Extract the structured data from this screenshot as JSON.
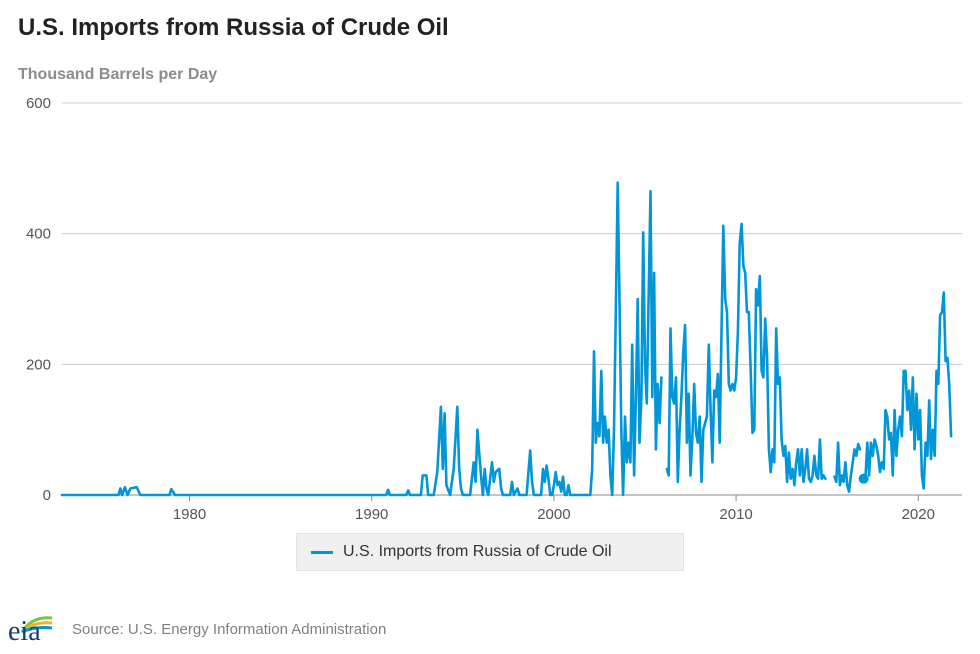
{
  "title": "U.S. Imports from Russia of Crude Oil",
  "subtitle": "Thousand Barrels per Day",
  "source": "Source: U.S. Energy Information Administration",
  "logo": {
    "text": "eia",
    "icon": "eia-logo-icon"
  },
  "colors": {
    "series": "#0096d7",
    "grid": "#cccccc",
    "axis": "#555555",
    "title": "#222222"
  },
  "chart_data": {
    "type": "line",
    "title": "U.S. Imports from Russia of Crude Oil",
    "ylabel": "Thousand Barrels per Day",
    "xlabel": "",
    "xlim": [
      1973,
      2022.4
    ],
    "ylim": [
      0,
      600
    ],
    "xticks": [
      1980,
      1990,
      2000,
      2010,
      2020
    ],
    "yticks": [
      0,
      200,
      400,
      600
    ],
    "legend": "bottom-center",
    "series": [
      {
        "name": "U.S. Imports from Russia of Crude Oil",
        "color": "#0096d7",
        "points": [
          [
            1973.0,
            0
          ],
          [
            1976.1,
            0
          ],
          [
            1976.2,
            10
          ],
          [
            1976.3,
            0
          ],
          [
            1976.45,
            12
          ],
          [
            1976.6,
            0
          ],
          [
            1976.75,
            10
          ],
          [
            1977.1,
            12
          ],
          [
            1977.3,
            0
          ],
          [
            1978.9,
            0
          ],
          [
            1979.0,
            9
          ],
          [
            1979.2,
            0
          ],
          [
            1990.8,
            0
          ],
          [
            1990.9,
            8
          ],
          [
            1991.0,
            0
          ],
          [
            1991.9,
            0
          ],
          [
            1992.0,
            7
          ],
          [
            1992.1,
            0
          ],
          [
            1992.7,
            0
          ],
          [
            1992.8,
            30
          ],
          [
            1993.0,
            30
          ],
          [
            1993.1,
            0
          ],
          [
            1993.4,
            0
          ],
          [
            1993.6,
            35
          ],
          [
            1993.8,
            135
          ],
          [
            1993.9,
            40
          ],
          [
            1994.0,
            125
          ],
          [
            1994.1,
            15
          ],
          [
            1994.3,
            0
          ],
          [
            1994.5,
            40
          ],
          [
            1994.7,
            135
          ],
          [
            1994.8,
            40
          ],
          [
            1994.9,
            10
          ],
          [
            1995.0,
            0
          ],
          [
            1995.4,
            0
          ],
          [
            1995.6,
            50
          ],
          [
            1995.7,
            20
          ],
          [
            1995.8,
            100
          ],
          [
            1996.0,
            30
          ],
          [
            1996.1,
            0
          ],
          [
            1996.2,
            40
          ],
          [
            1996.3,
            10
          ],
          [
            1996.4,
            0
          ],
          [
            1996.6,
            50
          ],
          [
            1996.7,
            20
          ],
          [
            1996.8,
            35
          ],
          [
            1997.0,
            40
          ],
          [
            1997.1,
            10
          ],
          [
            1997.2,
            0
          ],
          [
            1997.6,
            0
          ],
          [
            1997.7,
            20
          ],
          [
            1997.8,
            0
          ],
          [
            1998.0,
            10
          ],
          [
            1998.1,
            0
          ],
          [
            1998.5,
            0
          ],
          [
            1998.7,
            68
          ],
          [
            1998.8,
            20
          ],
          [
            1998.9,
            0
          ],
          [
            1999.3,
            0
          ],
          [
            1999.4,
            40
          ],
          [
            1999.5,
            20
          ],
          [
            1999.6,
            45
          ],
          [
            1999.7,
            25
          ],
          [
            1999.8,
            0
          ],
          [
            1999.9,
            0
          ],
          [
            2000.0,
            15
          ],
          [
            2000.1,
            35
          ],
          [
            2000.2,
            15
          ],
          [
            2000.3,
            20
          ],
          [
            2000.4,
            5
          ],
          [
            2000.5,
            28
          ],
          [
            2000.6,
            0
          ],
          [
            2000.7,
            0
          ],
          [
            2000.8,
            15
          ],
          [
            2000.9,
            0
          ],
          [
            2002.0,
            0
          ],
          [
            2002.1,
            40
          ],
          [
            2002.2,
            220
          ],
          [
            2002.3,
            80
          ],
          [
            2002.4,
            110
          ],
          [
            2002.5,
            90
          ],
          [
            2002.6,
            190
          ],
          [
            2002.7,
            80
          ],
          [
            2002.8,
            120
          ],
          [
            2002.9,
            80
          ],
          [
            2003.0,
            100
          ],
          [
            2003.1,
            30
          ],
          [
            2003.2,
            0
          ],
          [
            2003.3,
            100
          ],
          [
            2003.4,
            280
          ],
          [
            2003.5,
            478
          ],
          [
            2003.6,
            300
          ],
          [
            2003.7,
            100
          ],
          [
            2003.8,
            0
          ],
          [
            2003.9,
            120
          ],
          [
            2004.0,
            50
          ],
          [
            2004.1,
            80
          ],
          [
            2004.2,
            50
          ],
          [
            2004.3,
            230
          ],
          [
            2004.4,
            30
          ],
          [
            2004.5,
            150
          ],
          [
            2004.6,
            300
          ],
          [
            2004.7,
            80
          ],
          [
            2004.8,
            150
          ],
          [
            2004.9,
            402
          ],
          [
            2005.0,
            200
          ],
          [
            2005.1,
            140
          ],
          [
            2005.2,
            300
          ],
          [
            2005.3,
            465
          ],
          [
            2005.4,
            150
          ],
          [
            2005.5,
            340
          ],
          [
            2005.6,
            70
          ],
          [
            2005.7,
            170
          ],
          [
            2005.8,
            110
          ],
          [
            2005.9,
            180
          ],
          [
            2006.0,
            50
          ],
          [
            2006.2,
            40
          ],
          [
            2006.3,
            30
          ],
          [
            2006.4,
            255
          ],
          [
            2006.5,
            150
          ],
          [
            2006.6,
            140
          ],
          [
            2006.7,
            180
          ],
          [
            2006.8,
            20
          ],
          [
            2006.9,
            100
          ],
          [
            2007.0,
            150
          ],
          [
            2007.1,
            220
          ],
          [
            2007.2,
            260
          ],
          [
            2007.3,
            80
          ],
          [
            2007.4,
            155
          ],
          [
            2007.5,
            30
          ],
          [
            2007.6,
            90
          ],
          [
            2007.7,
            170
          ],
          [
            2007.8,
            95
          ],
          [
            2007.9,
            80
          ],
          [
            2008.0,
            120
          ],
          [
            2008.1,
            20
          ],
          [
            2008.2,
            100
          ],
          [
            2008.3,
            110
          ],
          [
            2008.4,
            120
          ],
          [
            2008.5,
            230
          ],
          [
            2008.6,
            130
          ],
          [
            2008.7,
            50
          ],
          [
            2008.8,
            160
          ],
          [
            2008.9,
            150
          ],
          [
            2009.0,
            185
          ],
          [
            2009.1,
            80
          ],
          [
            2009.2,
            250
          ],
          [
            2009.3,
            412
          ],
          [
            2009.4,
            300
          ],
          [
            2009.5,
            280
          ],
          [
            2009.6,
            170
          ],
          [
            2009.7,
            160
          ],
          [
            2009.8,
            170
          ],
          [
            2009.9,
            160
          ],
          [
            2010.0,
            180
          ],
          [
            2010.1,
            250
          ],
          [
            2010.2,
            385
          ],
          [
            2010.3,
            415
          ],
          [
            2010.4,
            350
          ],
          [
            2010.5,
            340
          ],
          [
            2010.6,
            280
          ],
          [
            2010.7,
            280
          ],
          [
            2010.8,
            190
          ],
          [
            2010.9,
            95
          ],
          [
            2011.0,
            100
          ],
          [
            2011.1,
            315
          ],
          [
            2011.2,
            290
          ],
          [
            2011.3,
            335
          ],
          [
            2011.4,
            190
          ],
          [
            2011.5,
            180
          ],
          [
            2011.6,
            270
          ],
          [
            2011.7,
            210
          ],
          [
            2011.8,
            70
          ],
          [
            2011.9,
            35
          ],
          [
            2012.0,
            70
          ],
          [
            2012.1,
            50
          ],
          [
            2012.2,
            255
          ],
          [
            2012.3,
            170
          ],
          [
            2012.4,
            180
          ],
          [
            2012.5,
            85
          ],
          [
            2012.6,
            60
          ],
          [
            2012.7,
            75
          ],
          [
            2012.8,
            20
          ],
          [
            2012.9,
            65
          ],
          [
            2013.0,
            25
          ],
          [
            2013.1,
            40
          ],
          [
            2013.2,
            15
          ],
          [
            2013.3,
            50
          ],
          [
            2013.4,
            70
          ],
          [
            2013.5,
            30
          ],
          [
            2013.6,
            70
          ],
          [
            2013.7,
            20
          ],
          [
            2013.8,
            40
          ],
          [
            2013.9,
            70
          ],
          [
            2014.0,
            25
          ],
          [
            2014.1,
            20
          ],
          [
            2014.2,
            30
          ],
          [
            2014.3,
            60
          ],
          [
            2014.4,
            30
          ],
          [
            2014.5,
            25
          ],
          [
            2014.6,
            85
          ],
          [
            2014.7,
            25
          ],
          [
            2014.8,
            30
          ],
          [
            2014.9,
            25
          ],
          [
            2015.2,
            20
          ],
          [
            2015.4,
            28
          ],
          [
            2015.5,
            20
          ],
          [
            2015.6,
            80
          ],
          [
            2015.7,
            15
          ],
          [
            2015.8,
            30
          ],
          [
            2015.9,
            20
          ],
          [
            2016.0,
            50
          ],
          [
            2016.1,
            15
          ],
          [
            2016.2,
            5
          ],
          [
            2016.3,
            30
          ],
          [
            2016.5,
            70
          ],
          [
            2016.6,
            60
          ],
          [
            2016.7,
            78
          ],
          [
            2016.8,
            70
          ],
          [
            2017.1,
            25
          ],
          [
            2017.2,
            80
          ],
          [
            2017.3,
            30
          ],
          [
            2017.4,
            80
          ],
          [
            2017.5,
            60
          ],
          [
            2017.6,
            85
          ],
          [
            2017.7,
            75
          ],
          [
            2017.8,
            60
          ],
          [
            2017.9,
            35
          ],
          [
            2018.0,
            50
          ],
          [
            2018.1,
            40
          ],
          [
            2018.2,
            130
          ],
          [
            2018.3,
            120
          ],
          [
            2018.4,
            85
          ],
          [
            2018.5,
            95
          ],
          [
            2018.6,
            30
          ],
          [
            2018.7,
            130
          ],
          [
            2018.8,
            60
          ],
          [
            2018.9,
            100
          ],
          [
            2019.0,
            120
          ],
          [
            2019.1,
            90
          ],
          [
            2019.2,
            190
          ],
          [
            2019.3,
            190
          ],
          [
            2019.4,
            130
          ],
          [
            2019.5,
            160
          ],
          [
            2019.6,
            100
          ],
          [
            2019.7,
            180
          ],
          [
            2019.8,
            70
          ],
          [
            2019.9,
            155
          ],
          [
            2020.0,
            85
          ],
          [
            2020.1,
            130
          ],
          [
            2020.2,
            30
          ],
          [
            2020.3,
            10
          ],
          [
            2020.4,
            80
          ],
          [
            2020.5,
            60
          ],
          [
            2020.6,
            145
          ],
          [
            2020.7,
            55
          ],
          [
            2020.8,
            100
          ],
          [
            2020.9,
            60
          ],
          [
            2021.0,
            190
          ],
          [
            2021.1,
            170
          ],
          [
            2021.2,
            275
          ],
          [
            2021.3,
            280
          ],
          [
            2021.4,
            310
          ],
          [
            2021.5,
            205
          ],
          [
            2021.6,
            210
          ],
          [
            2021.7,
            170
          ],
          [
            2021.8,
            90
          ]
        ],
        "gaps_after_x": [
          2005.9,
          2006.0,
          2014.9,
          2015.2,
          2016.8
        ],
        "isolated_points": [
          [
            2017.0,
            25
          ]
        ]
      }
    ]
  }
}
